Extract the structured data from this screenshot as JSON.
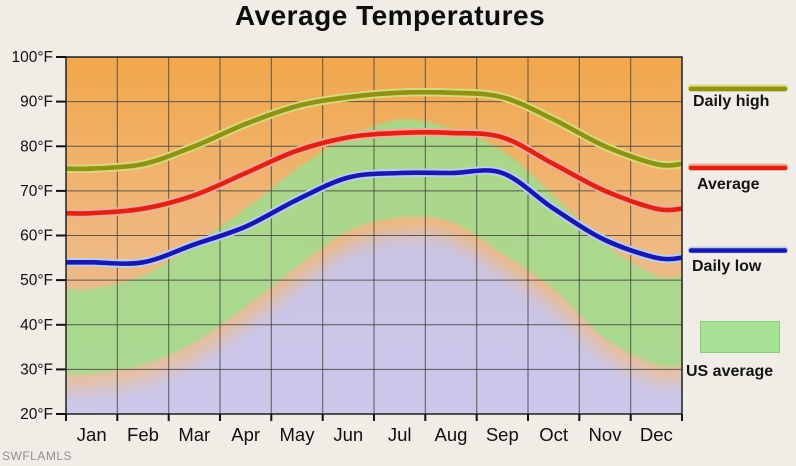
{
  "watermark": "SWFLAMLS",
  "colors": {
    "page_bg": "#f0ece6",
    "orange_top": "#f2a74b",
    "orange_mid": "#efb77c",
    "orange_bottom": "#e6c2a8",
    "lavender_top": "#d5cfe2",
    "lavender_bottom": "#cbc8ec",
    "grid": "#49443f",
    "border": "#1f1f1f",
    "tick": "#111111",
    "axis_text": "#111111"
  },
  "chart_data": {
    "type": "line",
    "title": "Average Temperatures",
    "categories": [
      "Jan",
      "Feb",
      "Mar",
      "Apr",
      "May",
      "Jun",
      "Jul",
      "Aug",
      "Sep",
      "Oct",
      "Nov",
      "Dec"
    ],
    "series": [
      {
        "name": "Daily high",
        "color": "#8f9213",
        "halo": "#d8d97c",
        "values": [
          75,
          76,
          80,
          85,
          89,
          91,
          92,
          92,
          91,
          86,
          80,
          76
        ]
      },
      {
        "name": "Average",
        "color": "#df2312",
        "halo": "#f3ab98",
        "values": [
          65,
          66,
          69,
          74,
          79,
          82,
          83,
          83,
          82,
          76,
          70,
          66
        ]
      },
      {
        "name": "Daily low",
        "color": "#1a17ad",
        "halo": "#b7cef2",
        "values": [
          54,
          54,
          58,
          62,
          68,
          73,
          74,
          74,
          74,
          66,
          59,
          55
        ]
      }
    ],
    "us_average_band": {
      "name": "US average",
      "color": "#a0dc8e",
      "high": [
        48,
        51,
        58,
        66,
        75,
        82,
        86,
        84,
        79,
        69,
        58,
        51
      ],
      "low": [
        29,
        31,
        36,
        44,
        53,
        61,
        64,
        63,
        56,
        48,
        37,
        31
      ]
    },
    "ylim": [
      20,
      100
    ],
    "ytick_values": [
      100,
      90,
      80,
      70,
      60,
      50,
      40,
      30,
      20
    ],
    "ytick_labels": [
      "100°F",
      "90°F",
      "80°F",
      "70°F",
      "60°F",
      "50°F",
      "40°F",
      "30°F",
      "20°F"
    ],
    "xlabel": "",
    "ylabel": "",
    "grid": true,
    "legend_position": "right"
  },
  "legend": {
    "items": [
      {
        "label": "Daily high",
        "swatch": "line"
      },
      {
        "label": "Average",
        "swatch": "line"
      },
      {
        "label": "Daily low",
        "swatch": "line"
      },
      {
        "label": "US average",
        "swatch": "area"
      }
    ]
  }
}
